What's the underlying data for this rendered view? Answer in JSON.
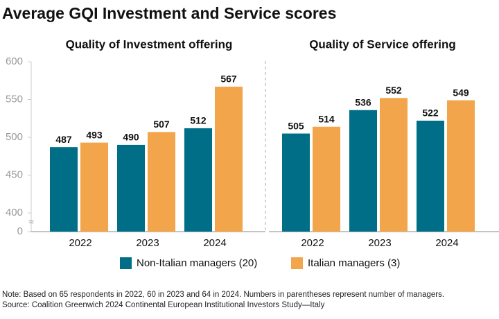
{
  "title": "Average GQI Investment and Service scores",
  "chart_data": [
    {
      "type": "bar",
      "title": "Quality of Investment offering",
      "categories": [
        "2022",
        "2023",
        "2024"
      ],
      "series": [
        {
          "name": "Non-Italian managers (20)",
          "color": "#006e87",
          "values": [
            487,
            490,
            512
          ]
        },
        {
          "name": "Italian managers (3)",
          "color": "#f2a54a",
          "values": [
            493,
            507,
            567
          ]
        }
      ],
      "ylim": [
        0,
        600
      ],
      "yticks": [
        0,
        400,
        450,
        500,
        550,
        600
      ],
      "axis_break": true
    },
    {
      "type": "bar",
      "title": "Quality of Service offering",
      "categories": [
        "2022",
        "2023",
        "2024"
      ],
      "series": [
        {
          "color": "#006e87",
          "values": [
            505,
            536,
            522
          ]
        },
        {
          "color": "#f2a54a",
          "values": [
            514,
            552,
            549
          ]
        }
      ],
      "ylim": [
        0,
        600
      ],
      "axis_break": true
    }
  ],
  "notes": [
    "Note: Based on 65 respondents in 2022, 60 in 2023 and 64 in 2024. Numbers in parentheses represent number of managers.",
    "Source: Coalition Greenwich 2024 Continental European Institutional Investors Study—Italy"
  ]
}
